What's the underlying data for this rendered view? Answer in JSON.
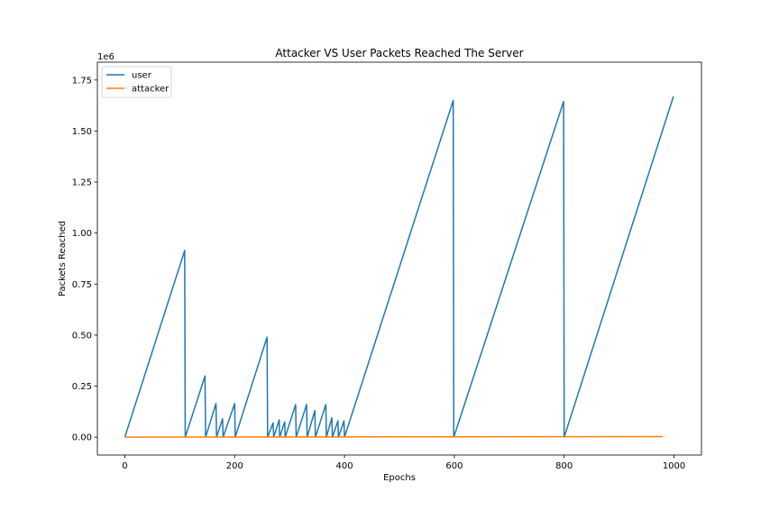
{
  "chart_data": {
    "type": "line",
    "title": "Attacker VS User Packets Reached The Server",
    "xlabel": "Epochs",
    "ylabel": "Packets Reached",
    "y_offset_label": "1e6",
    "xlim": [
      -50,
      1050
    ],
    "ylim": [
      -0.0875,
      1.8375
    ],
    "x_ticks": [
      0,
      200,
      400,
      600,
      800,
      1000
    ],
    "x_tick_labels": [
      "0",
      "200",
      "400",
      "600",
      "800",
      "1000"
    ],
    "y_ticks": [
      0,
      0.25,
      0.5,
      0.75,
      1.0,
      1.25,
      1.5,
      1.75
    ],
    "y_tick_labels": [
      "0.00",
      "0.25",
      "0.50",
      "0.75",
      "1.00",
      "1.25",
      "1.50",
      "1.75"
    ],
    "grid": false,
    "legend_position": "upper-left",
    "series": [
      {
        "name": "user",
        "color": "#1f77b4",
        "points": [
          [
            0,
            0
          ],
          [
            109,
            0.915
          ],
          [
            110,
            0
          ],
          [
            146,
            0.3
          ],
          [
            147,
            0
          ],
          [
            166,
            0.165
          ],
          [
            167,
            0
          ],
          [
            178,
            0.09
          ],
          [
            179,
            0
          ],
          [
            200,
            0.165
          ],
          [
            201,
            0
          ],
          [
            259,
            0.49
          ],
          [
            260,
            0
          ],
          [
            270,
            0.07
          ],
          [
            271,
            0
          ],
          [
            281,
            0.085
          ],
          [
            282,
            0
          ],
          [
            291,
            0.075
          ],
          [
            292,
            0
          ],
          [
            311,
            0.16
          ],
          [
            312,
            0
          ],
          [
            331,
            0.16
          ],
          [
            332,
            0
          ],
          [
            346,
            0.13
          ],
          [
            347,
            0
          ],
          [
            366,
            0.16
          ],
          [
            367,
            0
          ],
          [
            377,
            0.095
          ],
          [
            378,
            0
          ],
          [
            388,
            0.08
          ],
          [
            389,
            0
          ],
          [
            399,
            0.08
          ],
          [
            400,
            0
          ],
          [
            598,
            1.65
          ],
          [
            599,
            0
          ],
          [
            799,
            1.645
          ],
          [
            800,
            0
          ],
          [
            999,
            1.67
          ]
        ]
      },
      {
        "name": "attacker",
        "color": "#ff7f0e",
        "points": [
          [
            0,
            0
          ],
          [
            980,
            0.003
          ]
        ]
      }
    ]
  }
}
